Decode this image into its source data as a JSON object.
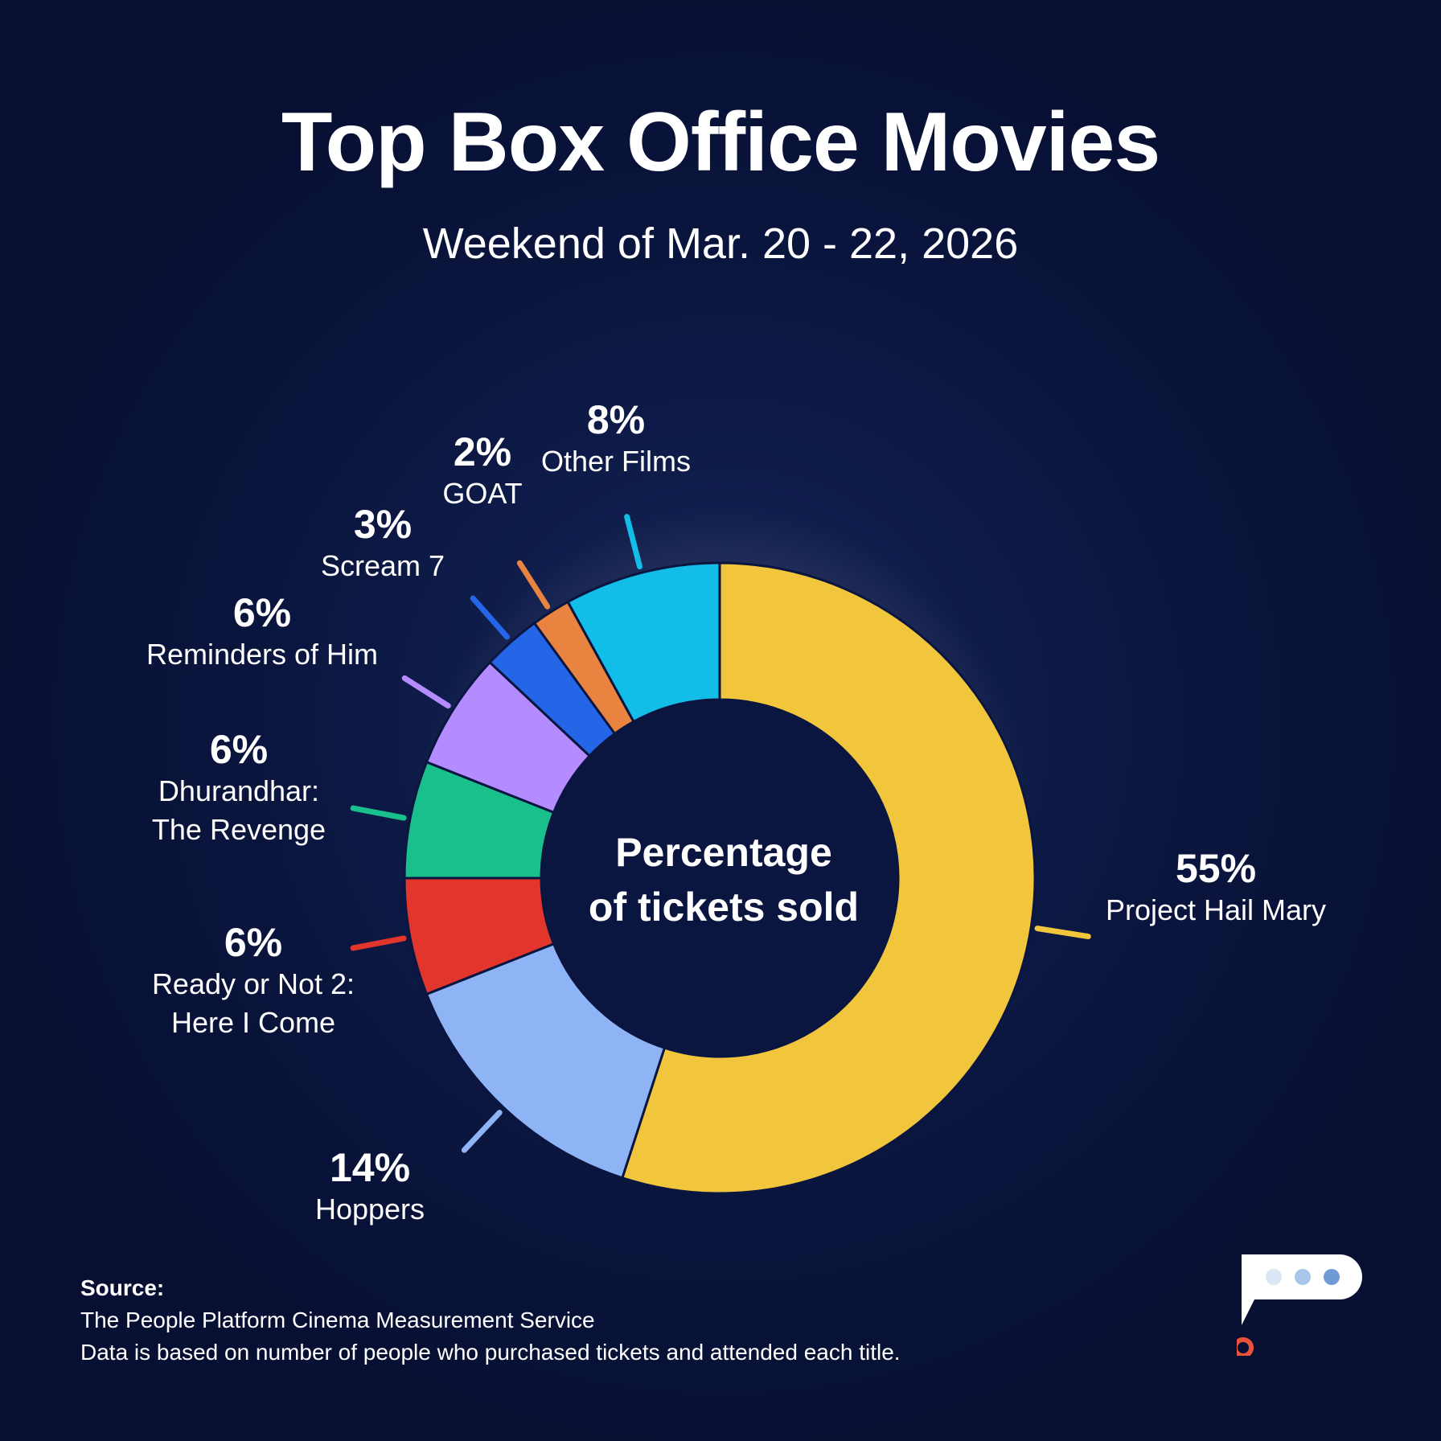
{
  "title": "Top Box Office Movies",
  "subtitle": "Weekend of Mar. 20 - 22, 2026",
  "chart_data": {
    "type": "pie",
    "style": "donut",
    "title": "Top Box Office Movies",
    "subtitle": "Weekend of Mar. 20 - 22, 2026",
    "center_label": [
      "Percentage",
      "of tickets sold"
    ],
    "slices": [
      {
        "label": "Project Hail Mary",
        "value": 55,
        "display": "55%",
        "color": "#f2c63c"
      },
      {
        "label": "Hoppers",
        "value": 14,
        "display": "14%",
        "color": "#8fb4f5"
      },
      {
        "label": "Ready or Not 2: Here I Come",
        "display_lines": [
          "Ready or Not 2:",
          "Here I Come"
        ],
        "value": 6,
        "display": "6%",
        "color": "#e2362d"
      },
      {
        "label": "Dhurandhar: The Revenge",
        "display_lines": [
          "Dhurandhar:",
          "The Revenge"
        ],
        "value": 6,
        "display": "6%",
        "color": "#19c08c"
      },
      {
        "label": "Reminders of Him",
        "value": 6,
        "display": "6%",
        "color": "#b48cff"
      },
      {
        "label": "Scream 7",
        "value": 3,
        "display": "3%",
        "color": "#2566e8"
      },
      {
        "label": "GOAT",
        "value": 2,
        "display": "2%",
        "color": "#e8843f"
      },
      {
        "label": "Other Films",
        "value": 8,
        "display": "8%",
        "color": "#12bde8"
      }
    ]
  },
  "source": {
    "heading": "Source:",
    "line1": "The People Platform Cinema Measurement Service",
    "line2": "Data is based on number of people who purchased tickets and attended each title."
  },
  "colors": {
    "background": "#0b1640",
    "center": "#0a1540",
    "logo_accent": "#e8533a",
    "logo_dots": [
      "#dbe6f5",
      "#aac6ea",
      "#6f9ad6"
    ]
  }
}
